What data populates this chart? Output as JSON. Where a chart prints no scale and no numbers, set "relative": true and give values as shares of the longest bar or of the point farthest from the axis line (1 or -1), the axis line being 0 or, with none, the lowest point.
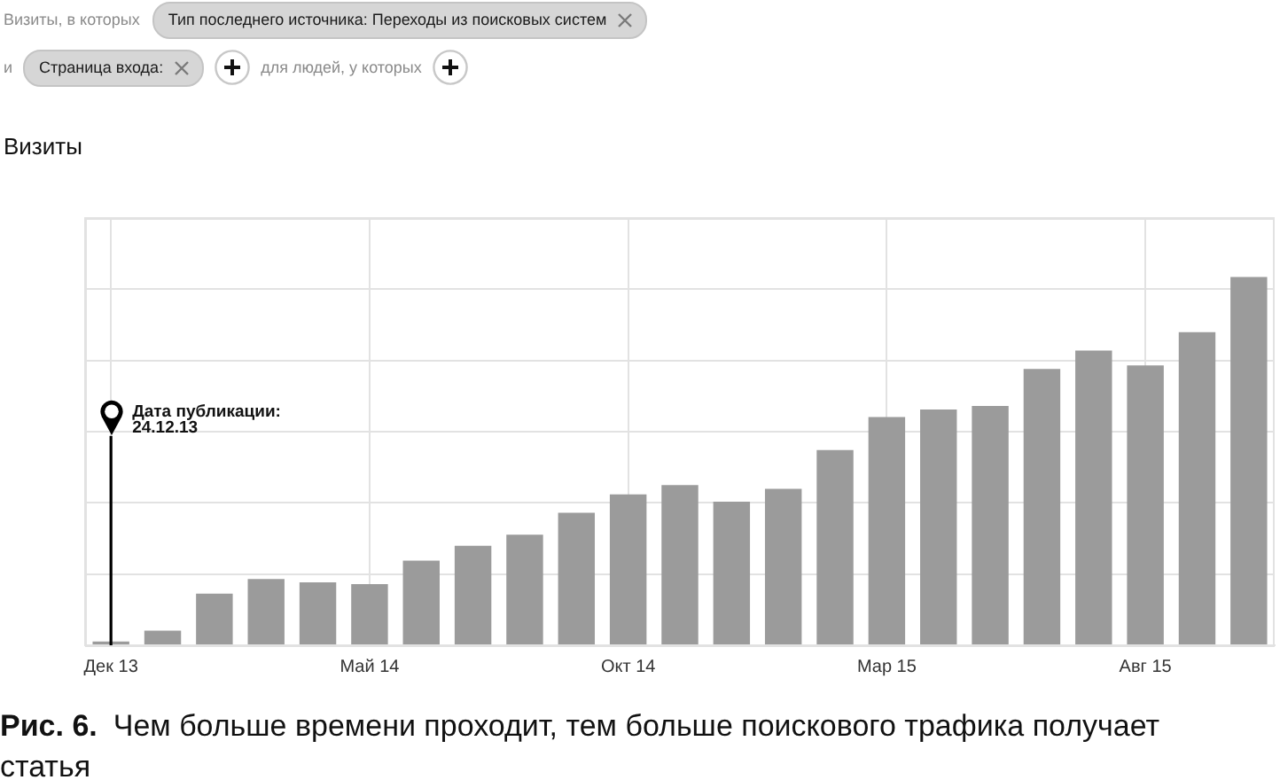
{
  "chart_data": {
    "type": "bar",
    "title": "Визиты",
    "categories": [
      "Дек 13",
      null,
      null,
      null,
      null,
      "Май 14",
      null,
      null,
      null,
      null,
      "Окт 14",
      null,
      null,
      null,
      null,
      "Мар 15",
      null,
      null,
      null,
      null,
      "Авг 15",
      null,
      null
    ],
    "values": [
      0.01,
      0.04,
      0.14,
      0.18,
      0.171,
      0.166,
      0.23,
      0.27,
      0.3,
      0.36,
      0.41,
      0.435,
      0.39,
      0.425,
      0.53,
      0.62,
      0.64,
      0.65,
      0.75,
      0.8,
      0.76,
      0.85,
      1
    ],
    "color": "#9b9b9b",
    "relative": true,
    "grid": true,
    "ref_lines": [
      {
        "axis": "x",
        "value": "Дек 13",
        "label": "Дата публикации:\n24.12.13",
        "color": "#000000"
      }
    ],
    "annotations": [
      "Визиты, в которых",
      "Тип последнего источника: Переходы из поисковых систем",
      "и",
      "Страница входа:",
      "для людей, у которых",
      "Рис. 6. Чем больше времени проходит, тем больше поискового трафика получает статья"
    ]
  }
}
